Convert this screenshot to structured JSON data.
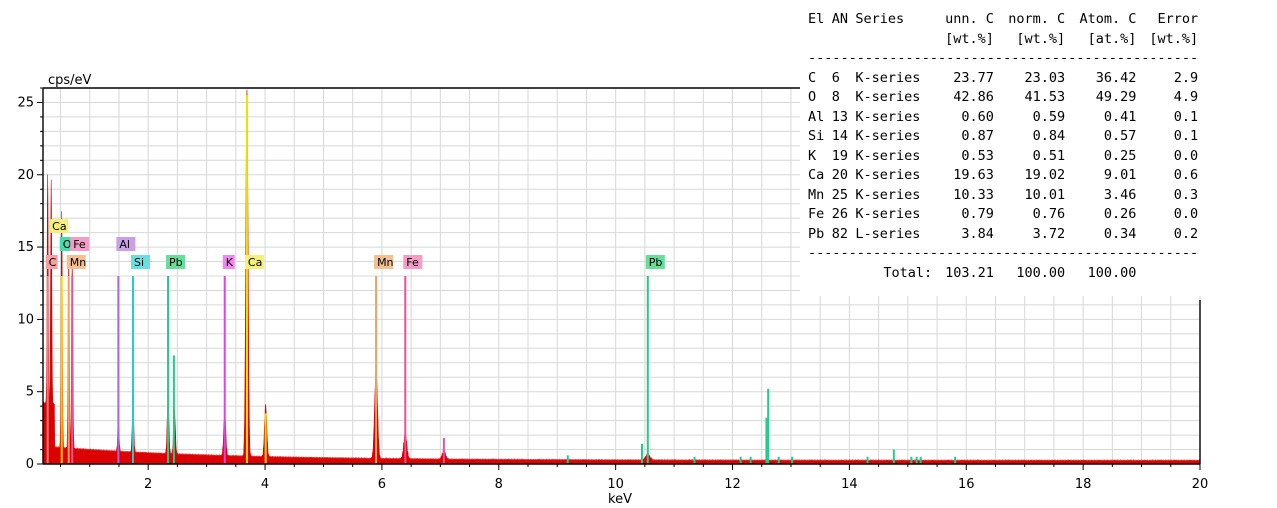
{
  "chart_data": {
    "type": "spectrum",
    "xlabel": "keV",
    "ylabel": "cps/eV",
    "xlim": [
      0.2,
      20
    ],
    "ylim": [
      0,
      26
    ],
    "x_ticks": [
      2,
      4,
      6,
      8,
      10,
      12,
      14,
      16,
      18,
      20
    ],
    "y_ticks": [
      0,
      5,
      10,
      15,
      20,
      25
    ],
    "grid": true,
    "colors": {
      "spectrum": "#dd0000",
      "C": "#f08080",
      "O": "#ffd000",
      "Al": "#aa66dd",
      "Si": "#22cccc",
      "K": "#dd44dd",
      "Ca": "#f0e000",
      "Mn": "#f0a060",
      "Fe": "#ee5090",
      "Pb": "#22cc88"
    },
    "element_labels": [
      {
        "label": "Ca",
        "energy": 0.34,
        "row": 0,
        "color": "#f5f07a"
      },
      {
        "label": "O",
        "energy": 0.52,
        "row": 1,
        "color": "#44ddaa"
      },
      {
        "label": "Fe",
        "energy": 0.7,
        "row": 1,
        "color": "#f29cc6"
      },
      {
        "label": "Al",
        "energy": 1.49,
        "row": 1,
        "color": "#c9a0e8"
      },
      {
        "label": "C",
        "energy": 0.28,
        "row": 2,
        "color": "#f4a0a0"
      },
      {
        "label": "Mn",
        "energy": 0.64,
        "row": 2,
        "color": "#f5c090"
      },
      {
        "label": "Si",
        "energy": 1.74,
        "row": 2,
        "color": "#66e0e0"
      },
      {
        "label": "Pb",
        "energy": 2.34,
        "row": 2,
        "color": "#66dd99"
      },
      {
        "label": "K",
        "energy": 3.31,
        "row": 2,
        "color": "#ee88ee"
      },
      {
        "label": "Ca",
        "energy": 3.69,
        "row": 2,
        "color": "#f5f07a"
      },
      {
        "label": "Mn",
        "energy": 5.9,
        "row": 2,
        "color": "#f5c090"
      },
      {
        "label": "Fe",
        "energy": 6.4,
        "row": 2,
        "color": "#f29cc6"
      },
      {
        "label": "Pb",
        "energy": 10.55,
        "row": 2,
        "color": "#66dd99"
      }
    ],
    "peaks": [
      {
        "energy": 0.28,
        "height": 16.0
      },
      {
        "energy": 0.34,
        "height": 15.5
      },
      {
        "energy": 0.52,
        "height": 16.5
      },
      {
        "energy": 0.64,
        "height": 13.0
      },
      {
        "energy": 0.7,
        "height": 13.0
      },
      {
        "energy": 1.49,
        "height": 2.0
      },
      {
        "energy": 1.74,
        "height": 3.3
      },
      {
        "energy": 2.34,
        "height": 3.8
      },
      {
        "energy": 2.45,
        "height": 3.0
      },
      {
        "energy": 3.31,
        "height": 3.0
      },
      {
        "energy": 3.69,
        "height": 25.5
      },
      {
        "energy": 4.01,
        "height": 3.6
      },
      {
        "energy": 5.9,
        "height": 6.1
      },
      {
        "energy": 6.4,
        "height": 1.8
      },
      {
        "energy": 7.06,
        "height": 0.6
      },
      {
        "energy": 10.55,
        "height": 0.4
      }
    ],
    "element_lines": [
      {
        "element": "C",
        "energy": 0.28,
        "height": 13.0
      },
      {
        "element": "O",
        "energy": 0.52,
        "height": 13.0
      },
      {
        "element": "Mn",
        "energy": 0.64,
        "height": 13.0
      },
      {
        "element": "Fe",
        "energy": 0.7,
        "height": 13.0
      },
      {
        "element": "Al",
        "energy": 1.49,
        "height": 13.0
      },
      {
        "element": "Si",
        "energy": 1.74,
        "height": 13.0
      },
      {
        "element": "Pb",
        "energy": 2.34,
        "height": 13.0
      },
      {
        "element": "Pb",
        "energy": 2.44,
        "height": 7.5
      },
      {
        "element": "K",
        "energy": 3.31,
        "height": 13.0
      },
      {
        "element": "Ca",
        "energy": 3.69,
        "height": 25.5
      },
      {
        "element": "Ca",
        "energy": 4.01,
        "height": 3.5
      },
      {
        "element": "Mn",
        "energy": 5.9,
        "height": 13.0
      },
      {
        "element": "Fe",
        "energy": 6.4,
        "height": 13.0
      },
      {
        "element": "Fe",
        "energy": 7.06,
        "height": 1.8
      },
      {
        "element": "Pb",
        "energy": 10.55,
        "height": 13.0
      },
      {
        "element": "Pb",
        "energy": 10.45,
        "height": 1.4
      },
      {
        "element": "Pb",
        "energy": 12.61,
        "height": 5.2
      },
      {
        "element": "Pb",
        "energy": 12.58,
        "height": 3.2
      },
      {
        "element": "Pb",
        "energy": 14.76,
        "height": 1.0
      },
      {
        "element": "Pb",
        "energy": 9.18,
        "height": 0.6
      },
      {
        "element": "Pb",
        "energy": 11.35,
        "height": 0.5
      },
      {
        "element": "Pb",
        "energy": 12.14,
        "height": 0.5
      },
      {
        "element": "Pb",
        "energy": 12.31,
        "height": 0.5
      },
      {
        "element": "Pb",
        "energy": 12.79,
        "height": 0.5
      },
      {
        "element": "Pb",
        "energy": 13.02,
        "height": 0.5
      },
      {
        "element": "Pb",
        "energy": 14.31,
        "height": 0.5
      },
      {
        "element": "Pb",
        "energy": 15.06,
        "height": 0.5
      },
      {
        "element": "Pb",
        "energy": 15.15,
        "height": 0.5
      },
      {
        "element": "Pb",
        "energy": 15.22,
        "height": 0.5
      },
      {
        "element": "Pb",
        "energy": 15.81,
        "height": 0.5
      }
    ]
  },
  "quant_table": {
    "headers": [
      {
        "el": "El",
        "an": "AN",
        "series": "Series",
        "unn": "unn. C",
        "norm": "norm. C",
        "atom": "Atom. C",
        "err": "Error"
      },
      {
        "el": "",
        "an": "",
        "series": "",
        "unn": "[wt.%]",
        "norm": "[wt.%]",
        "atom": "[at.%]",
        "err": "[wt.%]"
      }
    ],
    "separator": "------------------------------------------------",
    "rows": [
      {
        "el": "C",
        "an": "6",
        "series": "K-series",
        "unn": "23.77",
        "norm": "23.03",
        "atom": "36.42",
        "err": "2.9"
      },
      {
        "el": "O",
        "an": "8",
        "series": "K-series",
        "unn": "42.86",
        "norm": "41.53",
        "atom": "49.29",
        "err": "4.9"
      },
      {
        "el": "Al",
        "an": "13",
        "series": "K-series",
        "unn": "0.60",
        "norm": "0.59",
        "atom": "0.41",
        "err": "0.1"
      },
      {
        "el": "Si",
        "an": "14",
        "series": "K-series",
        "unn": "0.87",
        "norm": "0.84",
        "atom": "0.57",
        "err": "0.1"
      },
      {
        "el": "K",
        "an": "19",
        "series": "K-series",
        "unn": "0.53",
        "norm": "0.51",
        "atom": "0.25",
        "err": "0.0"
      },
      {
        "el": "Ca",
        "an": "20",
        "series": "K-series",
        "unn": "19.63",
        "norm": "19.02",
        "atom": "9.01",
        "err": "0.6"
      },
      {
        "el": "Mn",
        "an": "25",
        "series": "K-series",
        "unn": "10.33",
        "norm": "10.01",
        "atom": "3.46",
        "err": "0.3"
      },
      {
        "el": "Fe",
        "an": "26",
        "series": "K-series",
        "unn": "0.79",
        "norm": "0.76",
        "atom": "0.26",
        "err": "0.0"
      },
      {
        "el": "Pb",
        "an": "82",
        "series": "L-series",
        "unn": "3.84",
        "norm": "3.72",
        "atom": "0.34",
        "err": "0.2"
      }
    ],
    "total": {
      "label": "Total:",
      "unn": "103.21",
      "norm": "100.00",
      "atom": "100.00"
    }
  }
}
